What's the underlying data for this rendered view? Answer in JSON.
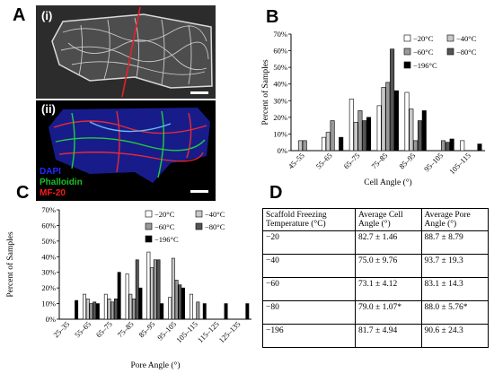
{
  "panels": {
    "a": "A",
    "b": "B",
    "c": "C",
    "d": "D",
    "a_sub_i": "(i)",
    "a_sub_ii": "(ii)"
  },
  "stains": [
    {
      "label": "DAPI",
      "color": "#1f2bff"
    },
    {
      "label": "Phalloidin",
      "color": "#19c02a"
    },
    {
      "label": "MF-20",
      "color": "#ff1a1a"
    }
  ],
  "colors": {
    "s20": "#ffffff",
    "s40": "#c8c8c8",
    "s60": "#999999",
    "s80": "#555555",
    "s196": "#000000",
    "microscopy_cut_line": "#e8202a"
  },
  "chart_data": [
    {
      "type": "bar",
      "panel": "B",
      "xlabel": "Cell Angle (°)",
      "ylabel": "Percent of Samples",
      "ylim": [
        0,
        70
      ],
      "yticks": [
        "0%",
        "10%",
        "20%",
        "30%",
        "40%",
        "50%",
        "60%",
        "70%"
      ],
      "grid": false,
      "legend_position": "top-right",
      "categories": [
        "45–55",
        "55–65",
        "65–75",
        "75–85",
        "85–95",
        "95–105",
        "105–115"
      ],
      "series": [
        {
          "name": "−20°C",
          "values": [
            0,
            8,
            31,
            27,
            35,
            0,
            6
          ]
        },
        {
          "name": "−40°C",
          "values": [
            6,
            11,
            17,
            38,
            25,
            0,
            0
          ]
        },
        {
          "name": "−60°C",
          "values": [
            6,
            18,
            24,
            41,
            6,
            6,
            0
          ]
        },
        {
          "name": "−80°C",
          "values": [
            0,
            0,
            18,
            61,
            18,
            5,
            0
          ]
        },
        {
          "name": "−196°C",
          "values": [
            0,
            8,
            20,
            36,
            24,
            7,
            4
          ]
        }
      ]
    },
    {
      "type": "bar",
      "panel": "C",
      "xlabel": "Pore Angle (°)",
      "ylabel": "Percent of Samples",
      "ylim": [
        0,
        70
      ],
      "yticks": [
        "0%",
        "10%",
        "20%",
        "30%",
        "40%",
        "50%",
        "60%",
        "70%"
      ],
      "grid": false,
      "legend_position": "top-right",
      "categories": [
        "25–35",
        "55–65",
        "65–75",
        "75–85",
        "85–95",
        "95–105",
        "105–115",
        "115–125",
        "125–135"
      ],
      "xtick_labels": [
        "25–35",
        "55–65",
        "65–75",
        "75–85",
        "85–95",
        "95–105",
        "105–115",
        "115–125",
        "125–135"
      ],
      "series": [
        {
          "name": "−20°C",
          "values": [
            0,
            16,
            16,
            29,
            43,
            14,
            16,
            0,
            0
          ]
        },
        {
          "name": "−40°C",
          "values": [
            0,
            13,
            13,
            16,
            33,
            39,
            0,
            0,
            0
          ]
        },
        {
          "name": "−60°C",
          "values": [
            0,
            10,
            11,
            13,
            38,
            25,
            11,
            0,
            0
          ]
        },
        {
          "name": "−80°C",
          "values": [
            0,
            11,
            13,
            38,
            38,
            22,
            0,
            0,
            0
          ]
        },
        {
          "name": "−196°C",
          "values": [
            12,
            10,
            30,
            20,
            10,
            20,
            10,
            10,
            10
          ]
        }
      ]
    },
    {
      "type": "table",
      "panel": "D",
      "headers": [
        "Scaffold Freezing Temperature (°C)",
        "Average Cell Angle (°)",
        "Average Pore Angle (°)"
      ],
      "rows": [
        [
          "−20",
          "82.7 ± 1.46",
          "88.7 ± 8.79"
        ],
        [
          "−40",
          "75.0 ± 9.76",
          "93.7 ± 19.3"
        ],
        [
          "−60",
          "73.1 ± 4.12",
          "83.1 ± 14.3"
        ],
        [
          "−80",
          "79.0 ± 1.07*",
          "88.0 ± 5.76*"
        ],
        [
          "−196",
          "81.7 ± 4.94",
          "90.6 ± 24.3"
        ]
      ]
    }
  ]
}
